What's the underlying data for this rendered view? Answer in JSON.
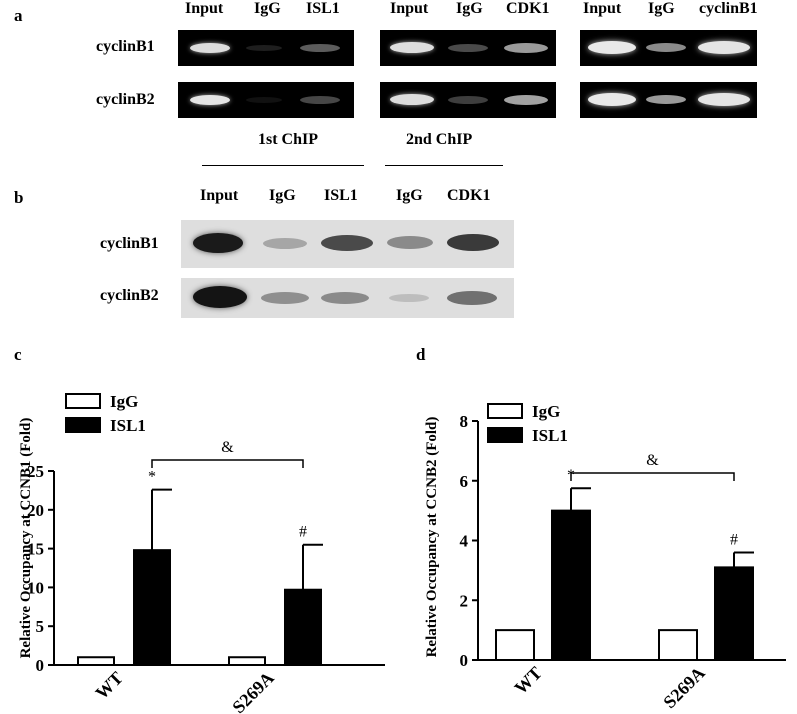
{
  "panel_a": {
    "letter": "a",
    "rows": [
      "cyclinB1",
      "cyclinB2"
    ],
    "gels": [
      {
        "lanes": [
          "Input",
          "IgG",
          "ISL1"
        ]
      },
      {
        "lanes": [
          "Input",
          "IgG",
          "CDK1"
        ]
      },
      {
        "lanes": [
          "Input",
          "IgG",
          "cyclinB1"
        ]
      }
    ]
  },
  "panel_b": {
    "letter": "b",
    "group_labels": [
      "1st ChIP",
      "2nd ChIP"
    ],
    "lanes": [
      "Input",
      "IgG",
      "ISL1",
      "IgG",
      "CDK1"
    ],
    "rows": [
      "cyclinB1",
      "cyclinB2"
    ]
  },
  "colors": {
    "igg_fill": "#ffffff",
    "isl1_fill": "#000000"
  },
  "chart_data": [
    {
      "type": "bar",
      "panel": "c",
      "categories": [
        "WT",
        "S269A"
      ],
      "series": [
        {
          "name": "IgG",
          "values": [
            1,
            1
          ]
        },
        {
          "name": "ISL1",
          "values": [
            14.8,
            9.7
          ],
          "errors": [
            7.8,
            5.8
          ]
        }
      ],
      "ylabel": "Relative Occupancy at CCNB1 (Fold)",
      "ylim": [
        0,
        25
      ],
      "yticks": [
        "0",
        "5",
        "10",
        "15",
        "20",
        "25"
      ],
      "annotations": [
        "*",
        "#",
        "&"
      ],
      "legend": "top-left"
    },
    {
      "type": "bar",
      "panel": "d",
      "categories": [
        "WT",
        "S269A"
      ],
      "series": [
        {
          "name": "IgG",
          "values": [
            1,
            1
          ]
        },
        {
          "name": "ISL1",
          "values": [
            5.0,
            3.1
          ],
          "errors": [
            0.75,
            0.5
          ]
        }
      ],
      "ylabel": "Relative Occupancy at CCNB2 (Fold)",
      "ylim": [
        0,
        8
      ],
      "yticks": [
        "0",
        "2",
        "4",
        "6",
        "8"
      ],
      "annotations": [
        "*",
        "#",
        "&"
      ],
      "legend": "top-left"
    }
  ]
}
